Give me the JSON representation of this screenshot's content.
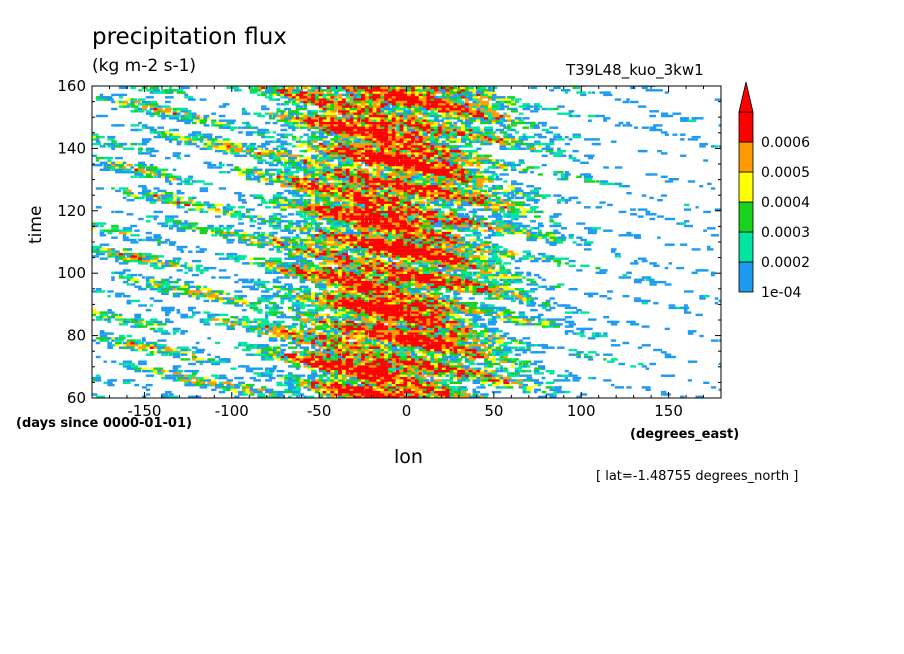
{
  "chart_data": {
    "type": "heatmap",
    "title": "precipitation flux",
    "units": "(kg m-2 s-1)",
    "experiment_label": "T39L48_kuo_3kw1",
    "xlabel": "lon",
    "ylabel": "time",
    "x_units": "(degrees_east)",
    "time_units": "(days since 0000-01-01)",
    "slice_label": "[ lat=-1.48755 degrees_north ]",
    "xlim": [
      -180,
      180
    ],
    "ylim": [
      60,
      160
    ],
    "x_ticks": [
      "-150",
      "-100",
      "-50",
      "0",
      "50",
      "100",
      "150"
    ],
    "x_tick_values": [
      -150,
      -100,
      -50,
      0,
      50,
      100,
      150
    ],
    "y_ticks": [
      "60",
      "80",
      "100",
      "120",
      "140",
      "160"
    ],
    "y_tick_values": [
      60,
      80,
      100,
      120,
      140,
      160
    ],
    "colorbar": {
      "levels": [
        "1e-04",
        "0.0002",
        "0.0003",
        "0.0004",
        "0.0005",
        "0.0006"
      ],
      "colors": [
        "#1e9bf0",
        "#00e6a0",
        "#19d21e",
        "#ffff00",
        "#ff9b00",
        "#ff0000"
      ],
      "extend": "max"
    },
    "note": "Hovmoller diagram: intense precipitation (>0.0006) concentrated between about -100 and 75 degrees_east at all times; sparse weak rain elsewhere."
  }
}
